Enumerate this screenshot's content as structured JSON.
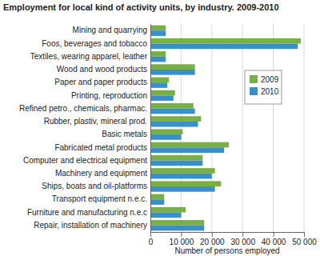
{
  "chart_data": {
    "type": "bar",
    "title": "Employment for local kind of activity units, by industry. 2009-2010",
    "x_label": "Number of persons employed",
    "orientation": "horizontal",
    "categories": [
      "Mining and quarrying",
      "Foos, beverages and tobacco",
      "Textiles, wearing apparel, leather",
      "Wood and wood products",
      "Paper and paper products",
      "Printing, reproduction",
      "Refined petro., chemicals, pharmac.",
      "Rubber, plastiv, mineral prod.",
      "Basic metals",
      "Fabricated metal products",
      "Computer and electrical equipment",
      "Machinery and equipment",
      "Ships, boats and oil-platforms",
      "Transport equipment n.e.c.",
      "Furniture and manufacturing n.e.c",
      "Repair, installation of machinery"
    ],
    "series": [
      {
        "name": "2009",
        "color": "#78b043",
        "values": [
          5000,
          49000,
          5000,
          14500,
          6000,
          8000,
          14000,
          16500,
          10500,
          25500,
          17000,
          21000,
          23000,
          4500,
          11500,
          17500
        ]
      },
      {
        "name": "2010",
        "color": "#3a8fc8",
        "values": [
          5000,
          48000,
          5000,
          14500,
          5500,
          7500,
          14500,
          15500,
          10000,
          24000,
          17000,
          20000,
          21000,
          4500,
          10000,
          17500
        ]
      }
    ],
    "xlim": [
      0,
      50000
    ],
    "xticks": [
      0,
      {
        "value": 10000,
        "label": "10 000"
      },
      {
        "value": 20000,
        "label": "20 000"
      },
      {
        "value": 30000,
        "label": "30 000"
      },
      {
        "value": 40000,
        "label": "40 000"
      },
      {
        "value": 50000,
        "label": "50 000"
      }
    ],
    "grid": true,
    "legend": "upper right"
  }
}
